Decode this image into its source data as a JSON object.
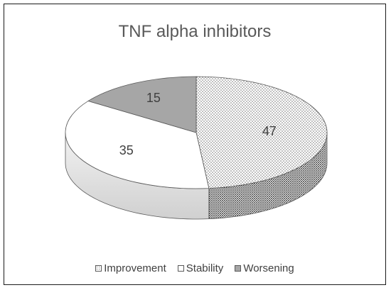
{
  "chart_data": {
    "type": "pie",
    "title": "TNF alpha inhibitors",
    "categories": [
      "Improvement",
      "Stability",
      "Worsening"
    ],
    "values": [
      47,
      35,
      15
    ],
    "data_labels": [
      "47",
      "35",
      "15"
    ],
    "legend_position": "bottom",
    "three_d": true,
    "colors": {
      "Improvement": "#ffffff",
      "Stability": "#ffffff",
      "Worsening": "#a6a6a6",
      "outline": "#595959",
      "label": "#404040"
    }
  }
}
